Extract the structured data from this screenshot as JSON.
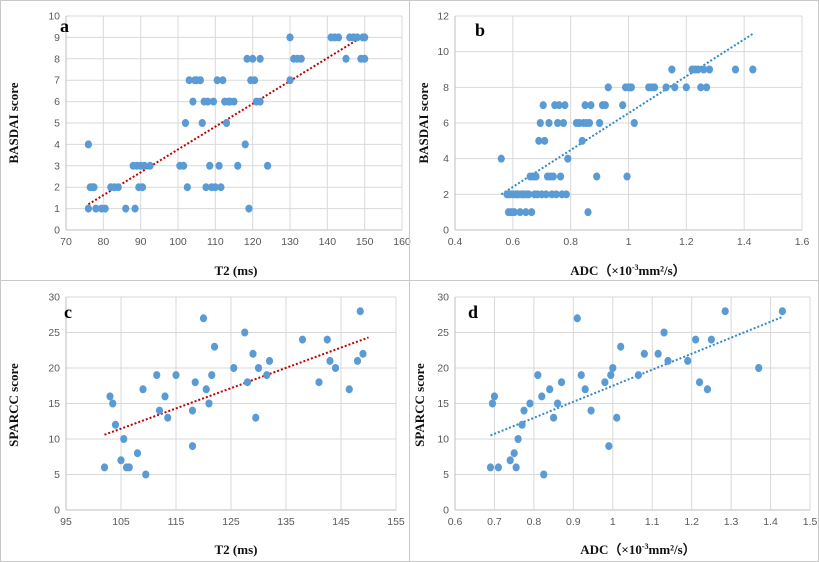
{
  "chart_data": [
    {
      "type": "scatter",
      "panel_label": "a",
      "xlabel": "T2 (ms)",
      "ylabel": "BASDAI score",
      "xlim": [
        70,
        160
      ],
      "ylim": [
        0,
        10
      ],
      "xticks": [
        "70",
        "80",
        "90",
        "100",
        "110",
        "120",
        "130",
        "140",
        "150",
        "160"
      ],
      "yticks": [
        "0",
        "1",
        "2",
        "3",
        "4",
        "5",
        "6",
        "7",
        "8",
        "9",
        "10"
      ],
      "trend_color": "#c00000",
      "trendline": {
        "x": [
          76,
          150
        ],
        "y": [
          1.2,
          9.1
        ]
      },
      "points": [
        [
          76,
          4
        ],
        [
          76,
          1
        ],
        [
          76.5,
          2
        ],
        [
          77,
          2
        ],
        [
          77.5,
          2
        ],
        [
          78,
          1
        ],
        [
          79.5,
          1
        ],
        [
          80.5,
          1
        ],
        [
          82,
          2
        ],
        [
          83,
          2
        ],
        [
          84,
          2
        ],
        [
          86,
          1
        ],
        [
          88.5,
          1
        ],
        [
          88,
          3
        ],
        [
          89,
          3
        ],
        [
          90,
          3
        ],
        [
          89.5,
          2
        ],
        [
          90.5,
          2
        ],
        [
          91,
          3
        ],
        [
          92.5,
          3
        ],
        [
          100.5,
          3
        ],
        [
          101.5,
          3
        ],
        [
          102,
          5
        ],
        [
          102.5,
          2
        ],
        [
          103,
          7
        ],
        [
          104,
          6
        ],
        [
          104.5,
          7
        ],
        [
          105,
          7
        ],
        [
          106,
          7
        ],
        [
          106.5,
          5
        ],
        [
          107,
          6
        ],
        [
          107.5,
          2
        ],
        [
          108,
          6
        ],
        [
          108.5,
          3
        ],
        [
          109,
          2
        ],
        [
          109.5,
          6
        ],
        [
          110,
          2
        ],
        [
          110.5,
          7
        ],
        [
          111,
          3
        ],
        [
          111.5,
          2
        ],
        [
          112,
          7
        ],
        [
          112.5,
          6
        ],
        [
          113,
          5
        ],
        [
          113.5,
          6
        ],
        [
          114,
          6
        ],
        [
          115,
          6
        ],
        [
          116,
          3
        ],
        [
          118,
          4
        ],
        [
          118.5,
          8
        ],
        [
          119,
          1
        ],
        [
          119.5,
          7
        ],
        [
          120,
          8
        ],
        [
          120.5,
          7
        ],
        [
          121,
          6
        ],
        [
          122,
          6
        ],
        [
          122,
          8
        ],
        [
          124,
          3
        ],
        [
          130,
          9
        ],
        [
          130,
          7
        ],
        [
          131,
          8
        ],
        [
          132,
          8
        ],
        [
          133,
          8
        ],
        [
          141,
          9
        ],
        [
          142,
          9
        ],
        [
          143,
          9
        ],
        [
          145,
          8
        ],
        [
          146,
          9
        ],
        [
          147,
          9
        ],
        [
          148,
          9
        ],
        [
          149,
          8
        ],
        [
          149.5,
          9
        ],
        [
          150,
          8
        ],
        [
          150,
          9
        ]
      ]
    },
    {
      "type": "scatter",
      "panel_label": "b",
      "xlabel": "ADC（×10",
      "xlabel_sup": "-3",
      "xlabel_end": "mm²/s）",
      "ylabel": "BASDAI score",
      "xlim": [
        0.4,
        1.6
      ],
      "ylim": [
        0,
        12
      ],
      "xticks": [
        "0.4",
        "0.6",
        "0.8",
        "1",
        "1.2",
        "1.4",
        "1.6"
      ],
      "yticks": [
        "0",
        "2",
        "4",
        "6",
        "8",
        "10",
        "12"
      ],
      "trend_color": "#2e8bc7",
      "trendline": {
        "x": [
          0.56,
          1.43
        ],
        "y": [
          2.0,
          11.0
        ]
      },
      "points": [
        [
          0.56,
          4
        ],
        [
          0.58,
          2
        ],
        [
          0.585,
          1
        ],
        [
          0.59,
          2
        ],
        [
          0.595,
          1
        ],
        [
          0.6,
          2
        ],
        [
          0.605,
          1
        ],
        [
          0.61,
          2
        ],
        [
          0.615,
          2
        ],
        [
          0.62,
          2
        ],
        [
          0.625,
          1
        ],
        [
          0.63,
          2
        ],
        [
          0.635,
          2
        ],
        [
          0.64,
          2
        ],
        [
          0.645,
          1
        ],
        [
          0.65,
          2
        ],
        [
          0.655,
          2
        ],
        [
          0.66,
          3
        ],
        [
          0.665,
          1
        ],
        [
          0.67,
          3
        ],
        [
          0.675,
          2
        ],
        [
          0.68,
          3
        ],
        [
          0.685,
          2
        ],
        [
          0.69,
          5
        ],
        [
          0.695,
          6
        ],
        [
          0.7,
          2
        ],
        [
          0.705,
          7
        ],
        [
          0.71,
          5
        ],
        [
          0.715,
          2
        ],
        [
          0.72,
          3
        ],
        [
          0.725,
          6
        ],
        [
          0.73,
          3
        ],
        [
          0.735,
          2
        ],
        [
          0.74,
          3
        ],
        [
          0.745,
          7
        ],
        [
          0.75,
          2
        ],
        [
          0.755,
          6
        ],
        [
          0.76,
          7
        ],
        [
          0.765,
          3
        ],
        [
          0.77,
          2
        ],
        [
          0.775,
          6
        ],
        [
          0.78,
          7
        ],
        [
          0.785,
          2
        ],
        [
          0.79,
          4
        ],
        [
          0.82,
          6
        ],
        [
          0.83,
          6
        ],
        [
          0.84,
          5
        ],
        [
          0.845,
          6
        ],
        [
          0.85,
          7
        ],
        [
          0.855,
          6
        ],
        [
          0.86,
          1
        ],
        [
          0.865,
          6
        ],
        [
          0.87,
          7
        ],
        [
          0.89,
          3
        ],
        [
          0.9,
          6
        ],
        [
          0.91,
          7
        ],
        [
          0.92,
          7
        ],
        [
          0.93,
          8
        ],
        [
          0.98,
          7
        ],
        [
          0.99,
          8
        ],
        [
          0.995,
          3
        ],
        [
          1.0,
          8
        ],
        [
          1.005,
          8
        ],
        [
          1.01,
          8
        ],
        [
          1.02,
          6
        ],
        [
          1.07,
          8
        ],
        [
          1.08,
          8
        ],
        [
          1.09,
          8
        ],
        [
          1.13,
          8
        ],
        [
          1.15,
          9
        ],
        [
          1.16,
          8
        ],
        [
          1.2,
          8
        ],
        [
          1.22,
          9
        ],
        [
          1.23,
          9
        ],
        [
          1.24,
          9
        ],
        [
          1.25,
          8
        ],
        [
          1.26,
          9
        ],
        [
          1.27,
          8
        ],
        [
          1.28,
          9
        ],
        [
          1.37,
          9
        ],
        [
          1.43,
          9
        ]
      ]
    },
    {
      "type": "scatter",
      "panel_label": "c",
      "xlabel": "T2 (ms)",
      "ylabel": "SPARCC score",
      "xlim": [
        95,
        155
      ],
      "ylim": [
        0,
        30
      ],
      "xticks": [
        "95",
        "105",
        "115",
        "125",
        "135",
        "145",
        "155"
      ],
      "yticks": [
        "0",
        "5",
        "10",
        "15",
        "20",
        "25",
        "30"
      ],
      "trend_color": "#c00000",
      "trendline": {
        "x": [
          102,
          150
        ],
        "y": [
          10.6,
          24.3
        ]
      },
      "points": [
        [
          102,
          6
        ],
        [
          103,
          16
        ],
        [
          103.5,
          15
        ],
        [
          104,
          12
        ],
        [
          105,
          7
        ],
        [
          105.5,
          10
        ],
        [
          106,
          6
        ],
        [
          106.5,
          6
        ],
        [
          108,
          8
        ],
        [
          109,
          17
        ],
        [
          109.5,
          5
        ],
        [
          111.5,
          19
        ],
        [
          112,
          14
        ],
        [
          113,
          16
        ],
        [
          113.5,
          13
        ],
        [
          115,
          19
        ],
        [
          118,
          14
        ],
        [
          118,
          9
        ],
        [
          118.5,
          18
        ],
        [
          120,
          27
        ],
        [
          120.5,
          17
        ],
        [
          121,
          15
        ],
        [
          121.5,
          19
        ],
        [
          122,
          23
        ],
        [
          125.5,
          20
        ],
        [
          127.5,
          25
        ],
        [
          128,
          18
        ],
        [
          129,
          22
        ],
        [
          129.5,
          13
        ],
        [
          130,
          20
        ],
        [
          131.5,
          19
        ],
        [
          132,
          21
        ],
        [
          138,
          24
        ],
        [
          141,
          18
        ],
        [
          142.5,
          24
        ],
        [
          143,
          21
        ],
        [
          144,
          20
        ],
        [
          146.5,
          17
        ],
        [
          148,
          21
        ],
        [
          148.5,
          28
        ],
        [
          149,
          22
        ]
      ]
    },
    {
      "type": "scatter",
      "panel_label": "d",
      "xlabel": "ADC（×10",
      "xlabel_sup": "-3",
      "xlabel_end": "mm²/s）",
      "ylabel": "SPARCC score",
      "xlim": [
        0.6,
        1.5
      ],
      "ylim": [
        0,
        30
      ],
      "xticks": [
        "0.6",
        "0.7",
        "0.8",
        "0.9",
        "1",
        "1.1",
        "1.2",
        "1.3",
        "1.4",
        "1.5"
      ],
      "yticks": [
        "0",
        "5",
        "10",
        "15",
        "20",
        "25",
        "30"
      ],
      "trend_color": "#2e8bc7",
      "trendline": {
        "x": [
          0.69,
          1.43
        ],
        "y": [
          10.5,
          27.2
        ]
      },
      "points": [
        [
          0.69,
          6
        ],
        [
          0.695,
          15
        ],
        [
          0.7,
          16
        ],
        [
          0.71,
          6
        ],
        [
          0.74,
          7
        ],
        [
          0.75,
          8
        ],
        [
          0.755,
          6
        ],
        [
          0.76,
          10
        ],
        [
          0.77,
          12
        ],
        [
          0.775,
          14
        ],
        [
          0.79,
          15
        ],
        [
          0.81,
          19
        ],
        [
          0.82,
          16
        ],
        [
          0.825,
          5
        ],
        [
          0.84,
          17
        ],
        [
          0.85,
          13
        ],
        [
          0.86,
          15
        ],
        [
          0.87,
          18
        ],
        [
          0.91,
          27
        ],
        [
          0.92,
          19
        ],
        [
          0.93,
          17
        ],
        [
          0.945,
          14
        ],
        [
          0.98,
          18
        ],
        [
          0.99,
          9
        ],
        [
          0.995,
          19
        ],
        [
          1.0,
          20
        ],
        [
          1.01,
          13
        ],
        [
          1.02,
          23
        ],
        [
          1.065,
          19
        ],
        [
          1.08,
          22
        ],
        [
          1.115,
          22
        ],
        [
          1.13,
          25
        ],
        [
          1.14,
          21
        ],
        [
          1.19,
          21
        ],
        [
          1.21,
          24
        ],
        [
          1.22,
          18
        ],
        [
          1.24,
          17
        ],
        [
          1.25,
          24
        ],
        [
          1.285,
          28
        ],
        [
          1.37,
          20
        ],
        [
          1.43,
          28
        ]
      ]
    }
  ]
}
